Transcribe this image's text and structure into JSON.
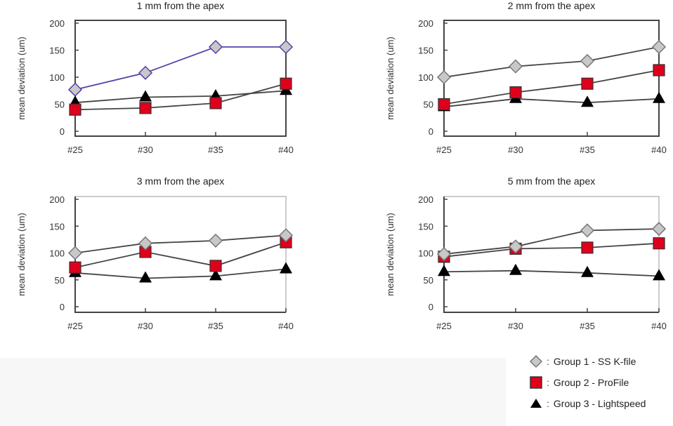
{
  "chart_data": [
    {
      "type": "line",
      "title": "1 mm from the apex",
      "xlabel": "",
      "ylabel": "mean deviation (um)",
      "categories": [
        "#25",
        "#30",
        "#35",
        "#40"
      ],
      "ylim": [
        0,
        200
      ],
      "yticks": [
        0,
        50,
        100,
        150,
        200
      ],
      "series": [
        {
          "name": "Group 1 - SS K-file",
          "values": [
            77,
            108,
            156,
            156
          ],
          "line_color": "#5a3fa8"
        },
        {
          "name": "Group 2 - ProFile",
          "values": [
            40,
            43,
            52,
            88
          ]
        },
        {
          "name": "Group 3 - Lightspeed",
          "values": [
            53,
            63,
            65,
            75
          ]
        }
      ]
    },
    {
      "type": "line",
      "title": "2 mm from the apex",
      "xlabel": "",
      "ylabel": "mean deviation (um)",
      "categories": [
        "#25",
        "#30",
        "#35",
        "#40"
      ],
      "ylim": [
        0,
        200
      ],
      "yticks": [
        0,
        50,
        100,
        150,
        200
      ],
      "series": [
        {
          "name": "Group 1 - SS K-file",
          "values": [
            100,
            120,
            130,
            156
          ]
        },
        {
          "name": "Group 2 - ProFile",
          "values": [
            50,
            72,
            88,
            113
          ]
        },
        {
          "name": "Group 3 - Lightspeed",
          "values": [
            45,
            60,
            53,
            60
          ]
        }
      ]
    },
    {
      "type": "line",
      "title": "3 mm from the apex",
      "xlabel": "",
      "ylabel": "mean deviation (um)",
      "categories": [
        "#25",
        "#30",
        "#35",
        "#40"
      ],
      "ylim": [
        0,
        200
      ],
      "yticks": [
        0,
        50,
        100,
        150,
        200
      ],
      "series": [
        {
          "name": "Group 1 - SS K-file",
          "values": [
            100,
            118,
            123,
            133
          ]
        },
        {
          "name": "Group 2 - ProFile",
          "values": [
            73,
            102,
            76,
            120
          ]
        },
        {
          "name": "Group 3 - Lightspeed",
          "values": [
            63,
            53,
            57,
            70
          ]
        }
      ]
    },
    {
      "type": "line",
      "title": "5 mm from the apex",
      "xlabel": "",
      "ylabel": "mean deviation (um)",
      "categories": [
        "#25",
        "#30",
        "#35",
        "#40"
      ],
      "ylim": [
        0,
        200
      ],
      "yticks": [
        0,
        50,
        100,
        150,
        200
      ],
      "series": [
        {
          "name": "Group 1 - SS K-file",
          "values": [
            98,
            112,
            142,
            145
          ]
        },
        {
          "name": "Group 2 - ProFile",
          "values": [
            93,
            108,
            110,
            118
          ]
        },
        {
          "name": "Group 3 - Lightspeed",
          "values": [
            65,
            67,
            63,
            57
          ]
        }
      ]
    }
  ],
  "legend": {
    "placement": "bottom-right",
    "items": [
      {
        "marker": "diamond-icon",
        "colon": ":",
        "label": "Group 1 - SS K-file",
        "color": "#c8c8c8"
      },
      {
        "marker": "square-icon",
        "colon": ":",
        "label": "Group 2 - ProFile",
        "color": "#e0001b"
      },
      {
        "marker": "triangle-icon",
        "colon": ":",
        "label": "Group 3 - Lightspeed",
        "color": "#000000"
      }
    ]
  },
  "colors": {
    "group1_fill": "#c8c8c8",
    "group1_stroke": "#777777",
    "group2_fill": "#e0001b",
    "group3_fill": "#000000",
    "line": "#444444"
  }
}
